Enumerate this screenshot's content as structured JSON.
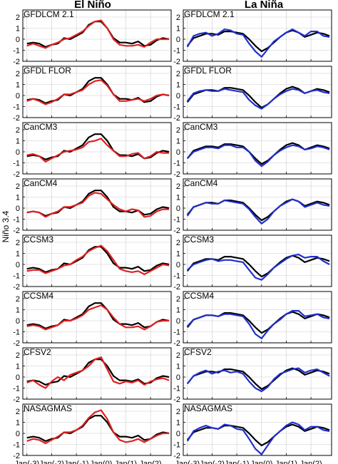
{
  "titles": {
    "left": "El Niño",
    "right": "La Niña"
  },
  "ylabel": "Niño 3.4",
  "yticks": [
    "2",
    "1",
    "0",
    "-1",
    "-2"
  ],
  "xtick_labels": [
    "Jan(-3)",
    "Jan(-2)",
    "Jan(-1)",
    "Jan(0)",
    "Jan(1)",
    "Jan(2)"
  ],
  "models": [
    "GFDLCM 2.1",
    "GFDL FLOR",
    "CanCM3",
    "CanCM4",
    "CCSM3",
    "CCSM4",
    "CFSV2",
    "NASAGMAS"
  ],
  "colors": {
    "observed": "#000000",
    "el_nino_model": "#e02020",
    "la_nina_model": "#1f2fd0",
    "grid": "#cccccc"
  },
  "chart_data": {
    "type": "line",
    "layout_grid": "8 rows (models) x 2 columns (El Niño, La Niña)",
    "x_unit": "months relative to Jan(-3)",
    "x_ticks": [
      0,
      12,
      24,
      36,
      48,
      60
    ],
    "xlim": [
      -2,
      70
    ],
    "ylim": [
      -2,
      2
    ],
    "grid": true,
    "ylabel": "Niño 3.4",
    "series_note": "black line = observations; red line = model (El Niño); blue line = model (La Niña)",
    "x": [
      0,
      3,
      6,
      9,
      12,
      15,
      18,
      21,
      24,
      27,
      30,
      33,
      36,
      39,
      42,
      45,
      48,
      51,
      54,
      57,
      60,
      63,
      66,
      69
    ],
    "observed_el_nino": [
      -0.4,
      -0.3,
      -0.4,
      -0.7,
      -0.5,
      -0.4,
      0.1,
      0.0,
      0.3,
      0.6,
      1.3,
      1.6,
      1.6,
      1.0,
      0.1,
      -0.3,
      -0.3,
      -0.4,
      -0.2,
      -0.6,
      -0.5,
      -0.1,
      0.1,
      0.0
    ],
    "observed_la_nina": [
      -0.6,
      0.1,
      0.3,
      0.5,
      0.5,
      0.4,
      0.7,
      0.7,
      0.6,
      0.5,
      0.0,
      -0.6,
      -1.1,
      -0.8,
      -0.3,
      0.2,
      0.6,
      0.8,
      0.6,
      0.2,
      0.4,
      0.6,
      0.5,
      0.3
    ],
    "panels": [
      {
        "model": "GFDLCM 2.1",
        "el_nino": [
          -0.6,
          -0.4,
          -0.6,
          -0.8,
          -0.5,
          -0.3,
          0.0,
          0.1,
          0.4,
          0.7,
          1.2,
          1.6,
          1.7,
          1.0,
          0.0,
          -0.5,
          -0.6,
          -0.6,
          -0.5,
          -0.7,
          -0.3,
          0.0,
          0.0,
          0.0
        ],
        "la_nina": [
          -0.7,
          0.3,
          0.5,
          0.6,
          0.3,
          0.5,
          0.9,
          0.8,
          0.5,
          0.4,
          -0.4,
          -1.1,
          -1.6,
          -0.9,
          -0.2,
          0.2,
          0.6,
          0.9,
          0.6,
          0.3,
          0.7,
          0.7,
          0.3,
          0.2
        ]
      },
      {
        "model": "GFDL FLOR",
        "el_nino": [
          -0.5,
          -0.3,
          -0.5,
          -0.8,
          -0.6,
          -0.3,
          0.1,
          0.1,
          0.3,
          0.5,
          1.0,
          1.3,
          1.4,
          0.9,
          0.1,
          -0.5,
          -0.5,
          -0.4,
          -0.3,
          -0.5,
          -0.3,
          0.0,
          0.1,
          0.0
        ],
        "la_nina": [
          -0.5,
          0.2,
          0.4,
          0.5,
          0.4,
          0.4,
          0.6,
          0.5,
          0.4,
          0.3,
          -0.4,
          -0.9,
          -1.2,
          -0.8,
          -0.3,
          0.1,
          0.4,
          0.6,
          0.5,
          0.2,
          0.4,
          0.5,
          0.3,
          0.2
        ]
      },
      {
        "model": "CanCM3",
        "el_nino": [
          -0.3,
          -0.2,
          -0.4,
          -0.9,
          -0.6,
          -0.3,
          0.0,
          0.1,
          0.2,
          0.4,
          0.9,
          1.0,
          1.2,
          0.6,
          0.1,
          -0.4,
          -0.4,
          -0.2,
          -0.1,
          -0.6,
          -0.4,
          0.0,
          -0.1,
          -0.1
        ],
        "la_nina": [
          -0.6,
          0.0,
          0.2,
          0.4,
          0.4,
          0.3,
          0.6,
          0.6,
          0.4,
          0.4,
          0.0,
          -0.8,
          -1.3,
          -0.9,
          -0.3,
          0.1,
          0.4,
          0.6,
          0.5,
          0.2,
          0.3,
          0.5,
          0.4,
          0.2
        ]
      },
      {
        "model": "CanCM4",
        "el_nino": [
          -0.4,
          -0.3,
          -0.4,
          -0.8,
          -0.5,
          -0.3,
          0.1,
          0.1,
          0.3,
          0.5,
          1.1,
          1.4,
          1.3,
          0.8,
          0.3,
          -0.1,
          -0.3,
          -0.1,
          -0.2,
          -0.8,
          -0.7,
          -0.3,
          -0.1,
          -0.1
        ],
        "la_nina": [
          -0.7,
          0.1,
          0.3,
          0.5,
          0.4,
          0.4,
          0.7,
          0.6,
          0.5,
          0.4,
          -0.1,
          -0.8,
          -1.4,
          -1.0,
          -0.3,
          0.2,
          0.5,
          0.8,
          0.6,
          0.1,
          0.3,
          0.5,
          0.3,
          0.2
        ]
      },
      {
        "model": "CCSM3",
        "el_nino": [
          -0.6,
          -0.5,
          -0.5,
          -0.8,
          -0.6,
          -0.4,
          -0.1,
          0.0,
          0.4,
          0.7,
          1.2,
          1.5,
          1.7,
          1.2,
          0.4,
          -0.4,
          -0.6,
          -0.7,
          -0.6,
          -0.9,
          -0.6,
          -0.3,
          0.0,
          -0.1
        ],
        "la_nina": [
          -0.5,
          0.0,
          0.2,
          0.4,
          0.5,
          0.3,
          0.4,
          0.4,
          0.3,
          0.2,
          -0.5,
          -1.2,
          -1.4,
          -0.9,
          -0.3,
          0.1,
          0.5,
          0.8,
          0.9,
          0.6,
          0.7,
          0.7,
          0.3,
          0.0
        ]
      },
      {
        "model": "CCSM4",
        "el_nino": [
          -0.5,
          -0.4,
          -0.5,
          -0.8,
          -0.6,
          -0.4,
          0.0,
          0.0,
          0.2,
          0.5,
          1.0,
          1.2,
          1.4,
          1.0,
          0.3,
          -0.3,
          -0.6,
          -0.6,
          -0.5,
          -0.8,
          -0.5,
          -0.1,
          0.0,
          0.0
        ],
        "la_nina": [
          -0.5,
          0.1,
          0.3,
          0.5,
          0.5,
          0.4,
          0.6,
          0.6,
          0.5,
          0.4,
          -0.3,
          -1.2,
          -1.6,
          -0.9,
          -0.3,
          0.1,
          0.6,
          0.9,
          0.9,
          0.4,
          0.5,
          0.6,
          0.3,
          0.2
        ]
      },
      {
        "model": "CFSV2",
        "el_nino": [
          -0.5,
          -0.3,
          -0.7,
          -1.0,
          -0.4,
          0.0,
          -0.3,
          0.2,
          0.4,
          0.6,
          1.0,
          1.6,
          1.8,
          0.7,
          -0.4,
          -0.6,
          -0.4,
          -0.5,
          -0.3,
          -0.7,
          -0.4,
          -0.2,
          -0.1,
          -0.3
        ],
        "la_nina": [
          -0.6,
          0.1,
          0.4,
          0.6,
          0.3,
          0.5,
          0.6,
          0.4,
          0.5,
          0.3,
          -0.4,
          -1.0,
          -1.3,
          -0.9,
          -0.2,
          0.3,
          0.5,
          0.7,
          0.8,
          0.4,
          0.6,
          0.7,
          0.4,
          0.1
        ]
      },
      {
        "model": "NASAGMAS",
        "el_nino": [
          -0.7,
          -0.5,
          -0.6,
          -0.9,
          -0.6,
          -0.3,
          0.1,
          0.1,
          0.3,
          0.7,
          1.4,
          1.9,
          2.1,
          1.3,
          0.1,
          -0.6,
          -0.8,
          -0.7,
          -0.5,
          -0.8,
          -0.5,
          -0.2,
          0.0,
          0.0
        ],
        "la_nina": [
          -0.7,
          0.2,
          0.5,
          0.7,
          0.5,
          0.4,
          0.8,
          0.7,
          0.4,
          0.3,
          -0.5,
          -1.4,
          -1.9,
          -1.1,
          -0.3,
          0.2,
          0.7,
          1.0,
          0.8,
          0.3,
          0.6,
          0.6,
          0.3,
          0.2
        ]
      }
    ]
  }
}
